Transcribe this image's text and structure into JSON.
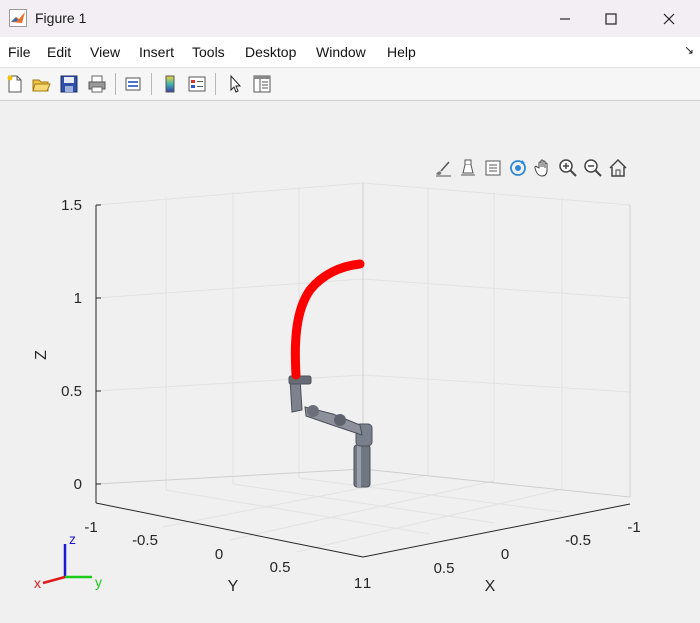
{
  "window": {
    "title": "Figure 1"
  },
  "menu": {
    "items": [
      "File",
      "Edit",
      "View",
      "Insert",
      "Tools",
      "Desktop",
      "Window",
      "Help"
    ]
  },
  "toolbar": {
    "buttons": [
      "new-figure-icon",
      "open-file-icon",
      "save-icon",
      "print-icon",
      "link-plot-icon",
      "colorbar-icon",
      "legend-icon",
      "pointer-icon",
      "property-inspector-icon"
    ]
  },
  "axes_toolbar": {
    "buttons": [
      "brush-icon",
      "data-tips-icon",
      "export-icon",
      "rotate-3d-icon",
      "pan-icon",
      "zoom-in-icon",
      "zoom-out-icon",
      "home-icon"
    ]
  },
  "plot": {
    "zlabel": "Z",
    "ylabel": "Y",
    "xlabel": "X",
    "z_ticks": [
      "1.5",
      "1",
      "0.5",
      "0"
    ],
    "y_ticks": [
      "-1",
      "-0.5",
      "0",
      "0.5",
      "1"
    ],
    "x_ticks": [
      "1",
      "0.5",
      "0",
      "-0.5",
      "-1"
    ],
    "trajectory_color": "#ff0000",
    "robot_color": "#6e7380",
    "triad": {
      "x": "x",
      "y": "y",
      "z": "z"
    }
  },
  "chart_data": {
    "type": "scatter",
    "title": "",
    "xlabel": "X",
    "ylabel": "Y",
    "zlabel": "Z",
    "xlim": [
      -1,
      1
    ],
    "ylim": [
      -1,
      1
    ],
    "zlim": [
      0,
      1.5
    ],
    "grid": true,
    "series": [
      {
        "marker_color": "#ff0000",
        "points_3d_approx": [
          {
            "x": 0.0,
            "y": 0.1,
            "z": 0.45
          },
          {
            "x": 0.0,
            "y": 0.1,
            "z": 0.7
          },
          {
            "x": 0.0,
            "y": 0.15,
            "z": 0.9
          },
          {
            "x": 0.0,
            "y": 0.25,
            "z": 1.05
          },
          {
            "x": 0.0,
            "y": 0.35,
            "z": 1.15
          },
          {
            "x": 0.0,
            "y": 0.45,
            "z": 1.2
          }
        ]
      }
    ]
  }
}
